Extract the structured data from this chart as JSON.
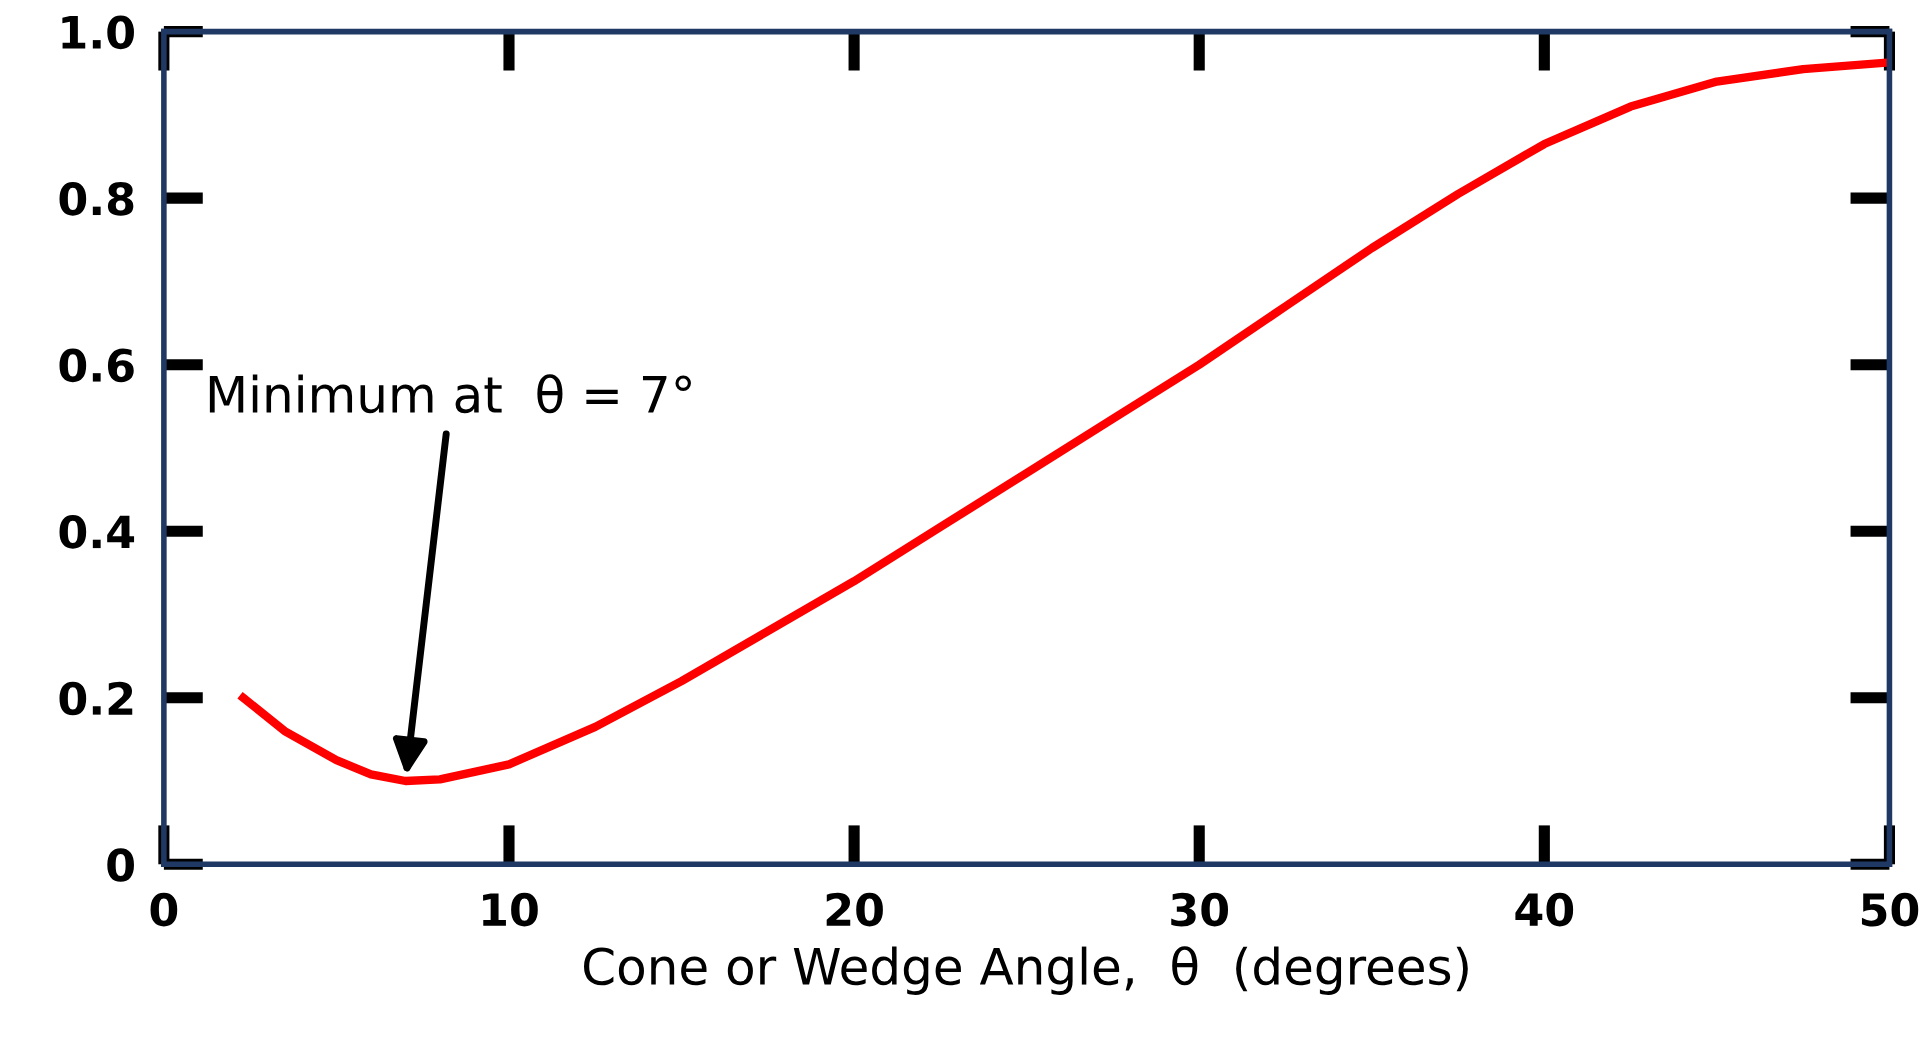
{
  "chart_data": {
    "type": "line",
    "xlabel": "Cone or Wedge Angle,  θ  (degrees)",
    "x": [
      2.3,
      3.5,
      5,
      6,
      7,
      8,
      10,
      12.5,
      15,
      17.5,
      20,
      22.5,
      25,
      27.5,
      30,
      32.5,
      35,
      37.5,
      40,
      42.5,
      45,
      47.5,
      50
    ],
    "series": [
      {
        "color": "#ff0000",
        "values": [
          0.2,
          0.16,
          0.125,
          0.108,
          0.1,
          0.102,
          0.12,
          0.165,
          0.22,
          0.28,
          0.34,
          0.405,
          0.47,
          0.535,
          0.6,
          0.67,
          0.74,
          0.805,
          0.865,
          0.91,
          0.94,
          0.955,
          0.963
        ]
      }
    ],
    "annotations": [
      {
        "text": "Minimum at  θ = 7°",
        "x": 7,
        "y": 0.1
      }
    ],
    "xlim": [
      0,
      50
    ],
    "ylim": [
      0,
      1
    ],
    "xticks": [
      0,
      10,
      20,
      30,
      40,
      50
    ],
    "yticks": [
      {
        "value": 0,
        "label": "0"
      },
      0.2,
      0.4,
      0.6,
      0.8,
      {
        "value": 1.0,
        "label": "1.0"
      }
    ],
    "grid": false,
    "legend": false,
    "marker": "none",
    "line_style": "solid"
  }
}
